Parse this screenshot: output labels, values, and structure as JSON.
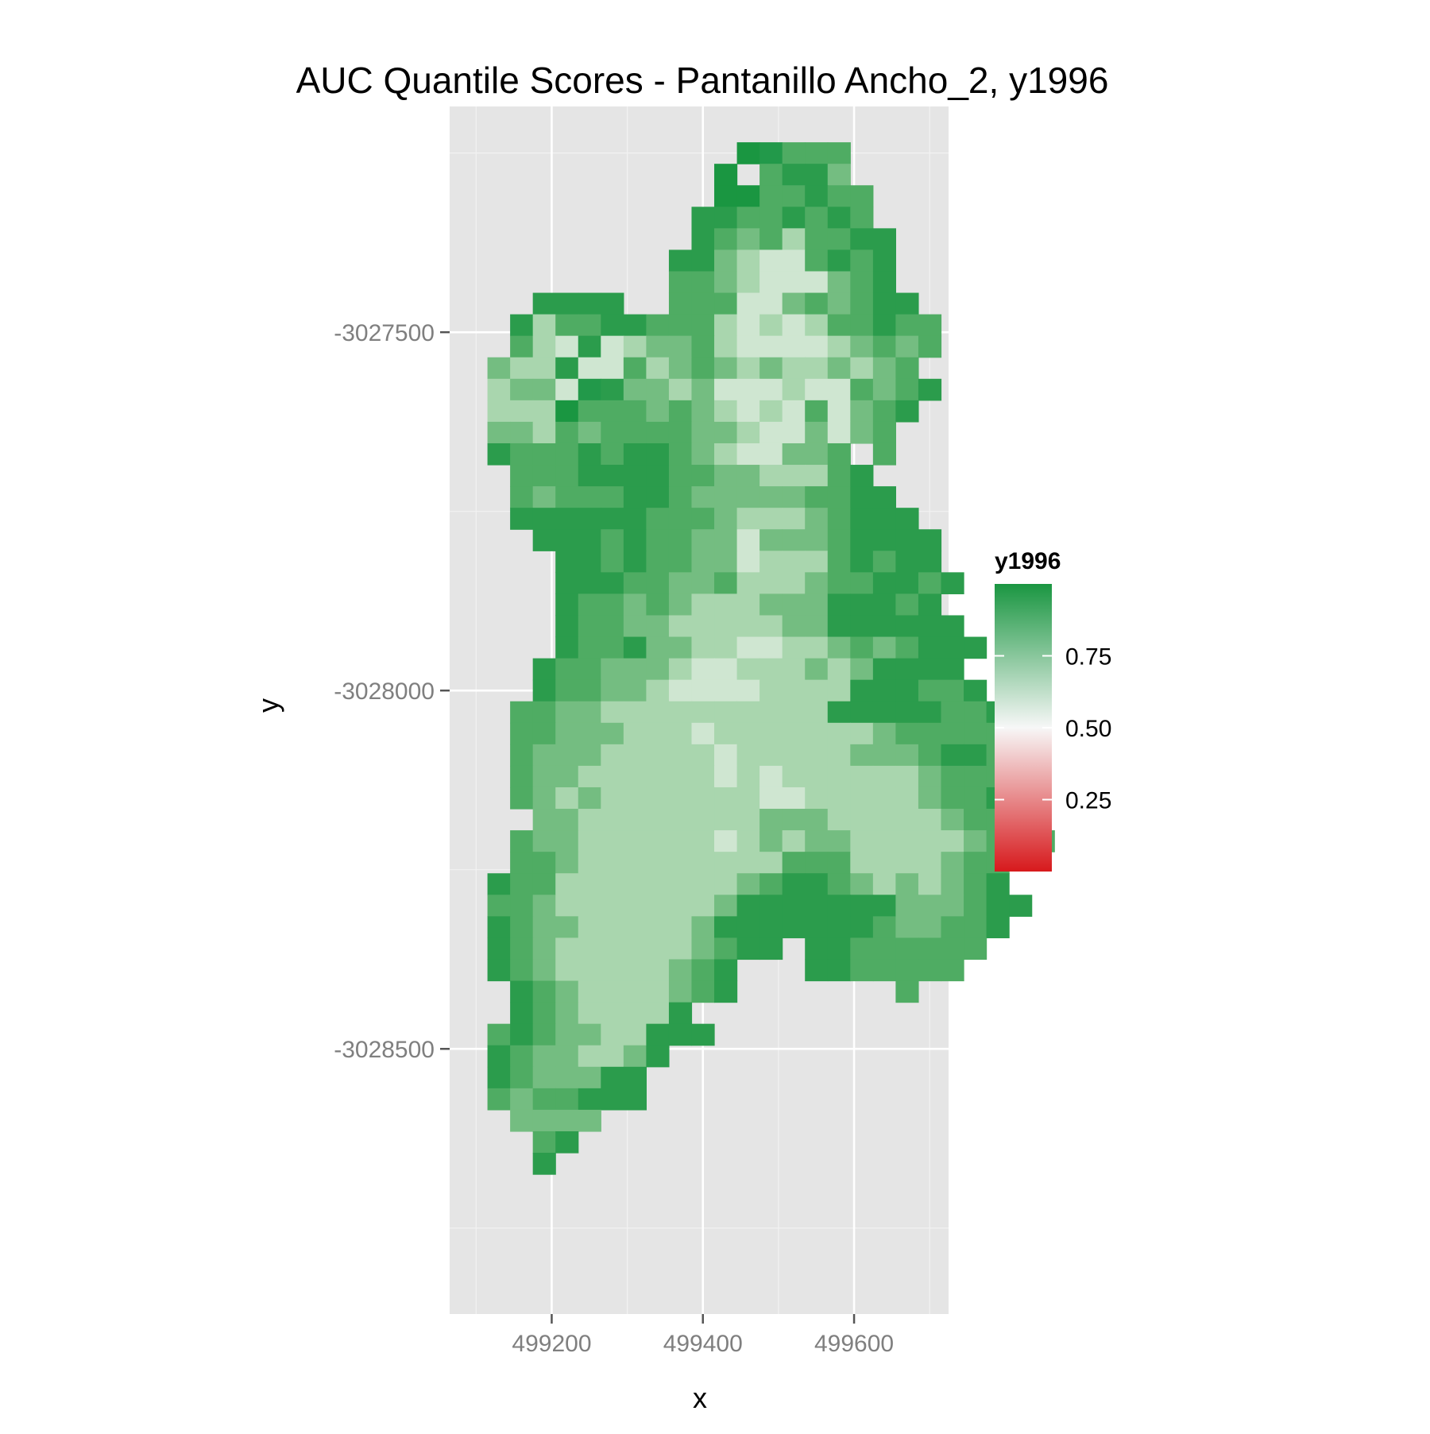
{
  "chart_data": {
    "type": "heatmap",
    "title": "AUC Quantile Scores - Pantanillo Ancho_2, y1996",
    "xlabel": "x",
    "ylabel": "y",
    "xlim": [
      499065,
      499725
    ],
    "ylim": [
      -3028870,
      -3027185
    ],
    "x_ticks": [
      499200,
      499400,
      499600
    ],
    "x_tick_labels": [
      "499200",
      "499400",
      "499600"
    ],
    "y_ticks": [
      -3027500,
      -3028000,
      -3028500
    ],
    "y_tick_labels": [
      "-3027500",
      "-3028000",
      "-3028500"
    ],
    "grid": true,
    "cell_size": 30,
    "legend": {
      "title": "y1996",
      "position": "right",
      "ticks": [
        0.25,
        0.5,
        0.75
      ],
      "tick_labels": [
        "0.25",
        "0.50",
        "0.75"
      ],
      "range": [
        0,
        1
      ],
      "colors": {
        "low": "#d7191c",
        "mid": "#f7f7f7",
        "high": "#1a9641"
      }
    },
    "x0": 499100,
    "y0": -3027250,
    "rows": [
      [
        "...",
        "...",
        "...",
        "...",
        "...",
        "...",
        "...",
        "...",
        "...",
        "...",
        "...",
        "...",
        "93.",
        "...",
        "...",
        "...",
        "...",
        "..."
      ],
      [
        "...",
        "...",
        "...",
        "...",
        "...",
        "...",
        "...",
        "...",
        "...",
        "...",
        "...",
        "8.9",
        "...",
        "...",
        "...",
        "...",
        "...",
        "..."
      ],
      [
        "...",
        "...",
        "...",
        "...",
        "...",
        "...",
        "...",
        "...",
        "...",
        "...",
        "...",
        "898",
        "9",
        "...",
        "...",
        "...",
        "...",
        "..."
      ],
      [
        "...",
        "...",
        "...",
        "...",
        "...",
        "...",
        "...",
        "...",
        "...",
        "...",
        "9",
        "898",
        "8",
        "9",
        "...",
        "...",
        "...",
        "..."
      ],
      [
        "...",
        "...",
        "...",
        "...",
        "...",
        "...",
        "...",
        "...",
        "...",
        "...",
        "7",
        "788",
        "8",
        "8",
        "...",
        "...",
        "...",
        "..."
      ],
      [
        "...",
        "...",
        "...",
        "...",
        "...",
        "...",
        "...",
        "...",
        "...",
        "9",
        "8",
        "767",
        "8",
        "9",
        "...",
        "...",
        "...",
        "..."
      ]
    ]
  },
  "grid_values": [
    "............12888.............",
    "...........1.8997.............",
    "...........1188988............",
    "..........99889898............",
    "..........987868899...........",
    ".........9976558989...........",
    ".........8876555789...........",
    "...9999..88855787899..........",
    "..9688998886565688988.........",
    "..8659567786555567878.........",
    ".7669558678767667678..........",
    ".67752977675556558789.........",
    ".6661888787656585789..........",
    ".776878888776557578...........",
    ".9888989987655778.8...........",
    "..8889999887766689............",
    "..87888998777778899...........",
    "..999999888766678999..........",
    "...999898877577789999.........",
    "....99898877566689899.........",
    "....999887786667889989........",
    "....98878766677799989.........",
    "....988776666677999999........",
    "....9889776655667878999.......",
    "...9887776556667679999........",
    "...98877655556666999889.......",
    "..8877666666666699999889......",
    "..88777666566666667888889.....",
    "..8777666665666667778998......",
    "..87766666656566666678888.....",
    "..8767666666655666667889......",
    "...7766666666777666667889.....",
    "..877666666567677666667888....",
    "..8876666666668886666788......",
    ".98866666666789987676789......",
    ".887666666679999999777899.....",
    ".98776666679999999877889......",
    ".9876666667899.99888888.......",
    ".98766666789...9988888........",
    "..9876666789.......8..........",
    "..98766669....................",
    ".8987766999...................",
    ".98776679.....................",
    ".9877799......................",
    ".8788999......................",
    "..7777........................",
    "...89.........................",
    "...9.........................."
  ]
}
